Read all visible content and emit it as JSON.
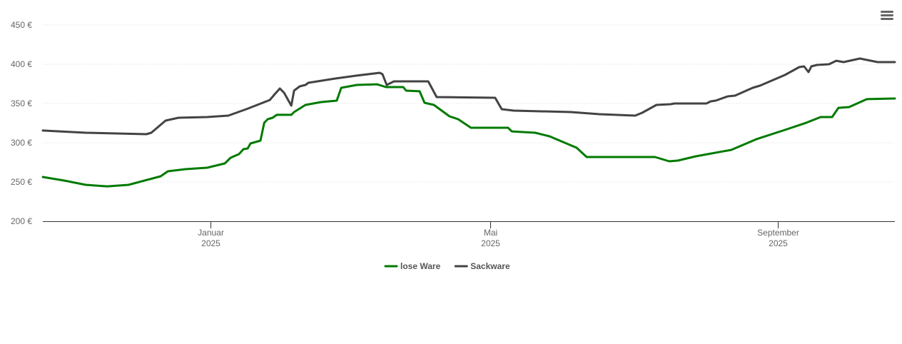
{
  "chart_data": {
    "type": "line",
    "title": "",
    "xlabel": "",
    "ylabel": "",
    "x_unit": "days since 2025-01-01",
    "xlim": [
      -71.9,
      293.3
    ],
    "ylim": [
      200,
      450
    ],
    "grid": true,
    "legend_position": "bottom-center",
    "y_ticks": [
      {
        "value": 200,
        "label": "200 €"
      },
      {
        "value": 250,
        "label": "250 €"
      },
      {
        "value": 300,
        "label": "300 €"
      },
      {
        "value": 350,
        "label": "350 €"
      },
      {
        "value": 400,
        "label": "400 €"
      },
      {
        "value": 450,
        "label": "450 €"
      }
    ],
    "x_ticks": [
      {
        "value": 0,
        "label": "Januar",
        "sublabel": "2025"
      },
      {
        "value": 120,
        "label": "Mai",
        "sublabel": "2025"
      },
      {
        "value": 243,
        "label": "September",
        "sublabel": "2025"
      }
    ],
    "series": [
      {
        "name": "lose Ware",
        "color": "#007a00",
        "points": [
          [
            -71.9,
            256.4
          ],
          [
            -62.7,
            251.8
          ],
          [
            -53.5,
            246.4
          ],
          [
            -44.3,
            244.5
          ],
          [
            -35.2,
            246.4
          ],
          [
            -21.4,
            257.3
          ],
          [
            -18.3,
            263.6
          ],
          [
            -10.7,
            266.4
          ],
          [
            -1.5,
            268.2
          ],
          [
            6.1,
            273.6
          ],
          [
            8.6,
            280.9
          ],
          [
            12.2,
            285.5
          ],
          [
            14.1,
            291.8
          ],
          [
            15.9,
            292.7
          ],
          [
            17.1,
            299.1
          ],
          [
            21.4,
            302.7
          ],
          [
            23.0,
            325.5
          ],
          [
            24.5,
            330
          ],
          [
            26.6,
            331.8
          ],
          [
            28.4,
            335.5
          ],
          [
            34.6,
            335.5
          ],
          [
            35.8,
            339.1
          ],
          [
            40.7,
            348.2
          ],
          [
            47.4,
            351.8
          ],
          [
            54.1,
            353.6
          ],
          [
            56.0,
            370
          ],
          [
            62.7,
            373.6
          ],
          [
            71.3,
            374.5
          ],
          [
            75.2,
            370.9
          ],
          [
            82.6,
            370.9
          ],
          [
            83.8,
            366.4
          ],
          [
            89.6,
            365.5
          ],
          [
            91.7,
            350.9
          ],
          [
            95.7,
            348.2
          ],
          [
            102.4,
            333.6
          ],
          [
            106.1,
            330
          ],
          [
            111.6,
            319.1
          ],
          [
            127.5,
            319.1
          ],
          [
            129.1,
            314.5
          ],
          [
            139.1,
            312.7
          ],
          [
            145.3,
            308.2
          ],
          [
            156.9,
            293.6
          ],
          [
            161.2,
            281.8
          ],
          [
            190.5,
            281.8
          ],
          [
            196.6,
            276.4
          ],
          [
            200.3,
            277.3
          ],
          [
            208.0,
            282.7
          ],
          [
            223.2,
            290.9
          ],
          [
            233.9,
            304.5
          ],
          [
            246.2,
            316.4
          ],
          [
            255.4,
            325.5
          ],
          [
            261.5,
            332.7
          ],
          [
            266.4,
            332.7
          ],
          [
            269.1,
            344.5
          ],
          [
            273.7,
            345.5
          ],
          [
            281.3,
            355.5
          ],
          [
            293.3,
            356.4
          ]
        ]
      },
      {
        "name": "Sackware",
        "color": "#434343",
        "points": [
          [
            -71.9,
            315.5
          ],
          [
            -53.5,
            312.7
          ],
          [
            -27.5,
            310.9
          ],
          [
            -25.4,
            312.7
          ],
          [
            -19.3,
            328.2
          ],
          [
            -13.8,
            331.8
          ],
          [
            -1.5,
            332.7
          ],
          [
            7.6,
            334.5
          ],
          [
            15.3,
            342.7
          ],
          [
            25.4,
            354.5
          ],
          [
            27.5,
            361.8
          ],
          [
            29.7,
            369.1
          ],
          [
            31.5,
            363.6
          ],
          [
            34.6,
            347.3
          ],
          [
            35.8,
            366.4
          ],
          [
            38.2,
            371.8
          ],
          [
            40.7,
            373.6
          ],
          [
            41.9,
            376.4
          ],
          [
            53.5,
            381.8
          ],
          [
            62.7,
            385.5
          ],
          [
            72.5,
            389.1
          ],
          [
            73.7,
            387.3
          ],
          [
            75.5,
            373.6
          ],
          [
            78.6,
            378.2
          ],
          [
            93.3,
            378.2
          ],
          [
            96.9,
            358.2
          ],
          [
            122.0,
            357.3
          ],
          [
            124.8,
            342.7
          ],
          [
            130.0,
            340.9
          ],
          [
            154.4,
            339.1
          ],
          [
            166.7,
            336.4
          ],
          [
            182.0,
            334.5
          ],
          [
            185.0,
            338.2
          ],
          [
            191.1,
            348.2
          ],
          [
            197.2,
            349.1
          ],
          [
            198.8,
            350
          ],
          [
            212.5,
            350
          ],
          [
            214.4,
            352.7
          ],
          [
            216.5,
            353.6
          ],
          [
            221.7,
            359.1
          ],
          [
            224.8,
            360
          ],
          [
            232.4,
            370
          ],
          [
            235.5,
            372.7
          ],
          [
            246.2,
            386.4
          ],
          [
            252.3,
            396.4
          ],
          [
            254.4,
            397.3
          ],
          [
            256.3,
            390
          ],
          [
            257.5,
            397.3
          ],
          [
            259.9,
            399.1
          ],
          [
            265.1,
            400
          ],
          [
            268.2,
            404.5
          ],
          [
            271.3,
            402.7
          ],
          [
            278.3,
            407.3
          ],
          [
            285.9,
            402.7
          ],
          [
            293.3,
            402.7
          ]
        ]
      }
    ]
  },
  "menu": {
    "icon": "hamburger-menu-icon"
  }
}
